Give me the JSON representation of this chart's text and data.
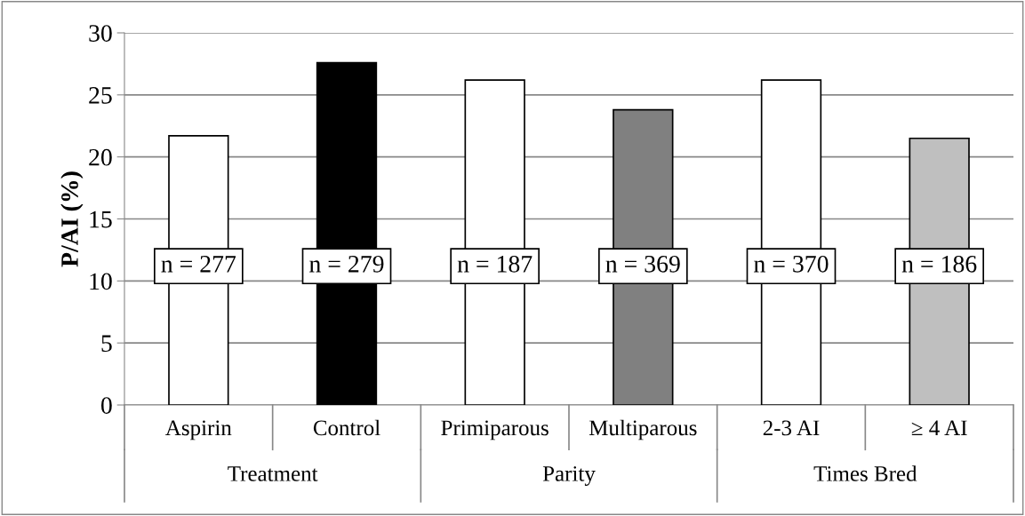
{
  "chart_data": {
    "type": "bar",
    "ylabel": "P/AI (%)",
    "categories": [
      "Aspirin",
      "Control",
      "Primiparous",
      "Multiparous",
      "2-3 AI",
      "≥ 4 AI"
    ],
    "values": [
      21.7,
      27.6,
      26.2,
      23.8,
      26.2,
      21.5
    ],
    "colors": [
      "#ffffff",
      "#000000",
      "#ffffff",
      "#808080",
      "#ffffff",
      "#bfbfbf"
    ],
    "ylim": [
      0,
      30
    ],
    "yticks": [
      0,
      5,
      10,
      15,
      20,
      25,
      30
    ],
    "grid": "y",
    "legend": false,
    "annotations": [
      "n = 277",
      "n = 279",
      "n = 187",
      "n = 369",
      "n = 370",
      "n = 186",
      "Treatment",
      "Parity",
      "Times Bred"
    ]
  }
}
